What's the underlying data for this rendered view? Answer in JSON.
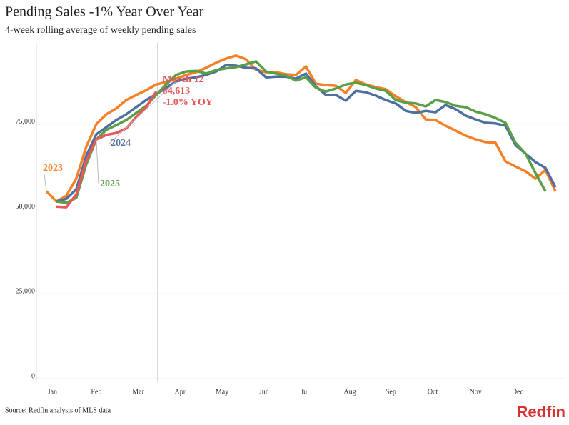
{
  "chart_data": {
    "type": "line",
    "title": "Pending Sales -1% Year Over Year",
    "subtitle": "4-week rolling average of weekly pending sales",
    "source": "Source: Redfin analysis of MLS data",
    "logo_text": "Redfin",
    "x": [
      1,
      2,
      3,
      4,
      5,
      6,
      7,
      8,
      9,
      10,
      11,
      12,
      13,
      14,
      15,
      16,
      17,
      18,
      19,
      20,
      21,
      22,
      23,
      24,
      25,
      26,
      27,
      28,
      29,
      30,
      31,
      32,
      33,
      34,
      35,
      36,
      37,
      38,
      39,
      40,
      41,
      42,
      43,
      44,
      45,
      46,
      47,
      48,
      49,
      50,
      51,
      52
    ],
    "xlim": [
      0,
      53
    ],
    "xticks": [
      {
        "value": 1.6,
        "label": "Jan"
      },
      {
        "value": 6,
        "label": "Feb"
      },
      {
        "value": 10.2,
        "label": "Mar"
      },
      {
        "value": 14.4,
        "label": "Apr"
      },
      {
        "value": 18.6,
        "label": "May"
      },
      {
        "value": 22.8,
        "label": "Jun"
      },
      {
        "value": 26.9,
        "label": "Jul"
      },
      {
        "value": 31.4,
        "label": "Aug"
      },
      {
        "value": 35.5,
        "label": "Sep"
      },
      {
        "value": 39.7,
        "label": "Oct"
      },
      {
        "value": 44,
        "label": "Nov"
      },
      {
        "value": 48.2,
        "label": "Dec"
      }
    ],
    "ylim": [
      0,
      100000
    ],
    "yticks": [
      0,
      {
        "value": 25000,
        "label": "25,000"
      },
      {
        "value": 50000,
        "label": "50,000"
      },
      {
        "value": 75000,
        "label": "75,000"
      }
    ],
    "grid": true,
    "series": [
      {
        "name": "2023",
        "color": "#f58025",
        "values": [
          55200,
          52200,
          53900,
          59000,
          68400,
          75000,
          77900,
          79600,
          82100,
          83600,
          85000,
          86700,
          87400,
          88400,
          89500,
          90300,
          91600,
          93100,
          94300,
          95200,
          94100,
          91000,
          90300,
          90300,
          89700,
          89500,
          92000,
          86900,
          86500,
          86300,
          84200,
          88000,
          86700,
          85900,
          85300,
          83200,
          81500,
          80000,
          76400,
          76200,
          74500,
          73100,
          71600,
          70500,
          69700,
          69500,
          64000,
          62500,
          61100,
          58900,
          61500,
          55200
        ]
      },
      {
        "name": "2024",
        "color": "#4e70a0",
        "values": [
          null,
          52200,
          53000,
          55800,
          65700,
          72000,
          74100,
          76200,
          77900,
          80000,
          82100,
          83800,
          85700,
          87600,
          88400,
          88800,
          89500,
          90500,
          92400,
          92200,
          91600,
          91400,
          88800,
          89000,
          89000,
          88400,
          89900,
          86100,
          83600,
          83600,
          81900,
          84800,
          84400,
          83400,
          82100,
          81100,
          78900,
          78300,
          78900,
          78500,
          80600,
          79400,
          77500,
          76400,
          75400,
          75200,
          74500,
          68800,
          66300,
          63800,
          62100,
          56400
        ]
      },
      {
        "name": "2025",
        "color": "#5a9e46",
        "values": [
          null,
          52200,
          51800,
          53300,
          63200,
          70500,
          73300,
          74700,
          76200,
          78300,
          80400,
          83600,
          86700,
          89500,
          90500,
          90700,
          89900,
          90900,
          91400,
          91800,
          92600,
          93500,
          90500,
          89900,
          89300,
          87800,
          88800,
          85700,
          84600,
          85500,
          86700,
          87200,
          86500,
          85500,
          84800,
          82100,
          81300,
          81100,
          80200,
          82100,
          81500,
          80400,
          80000,
          78700,
          77900,
          76800,
          75400,
          69500,
          66300,
          60600,
          55200,
          null
        ]
      },
      {
        "color": "#e8575a",
        "values": [
          null,
          50700,
          50500,
          54300,
          64200,
          70500,
          71800,
          72400,
          73700,
          77100,
          80000,
          84613,
          null,
          null,
          null,
          null,
          null,
          null,
          null,
          null,
          null,
          null,
          null,
          null,
          null,
          null,
          null,
          null,
          null,
          null,
          null,
          null,
          null,
          null,
          null,
          null,
          null,
          null,
          null,
          null,
          null,
          null,
          null,
          null,
          null,
          null,
          null,
          null,
          null,
          null,
          null,
          null
        ]
      }
    ],
    "annotation": [
      "March 12",
      "84,613",
      "-1.0% YOY"
    ]
  }
}
